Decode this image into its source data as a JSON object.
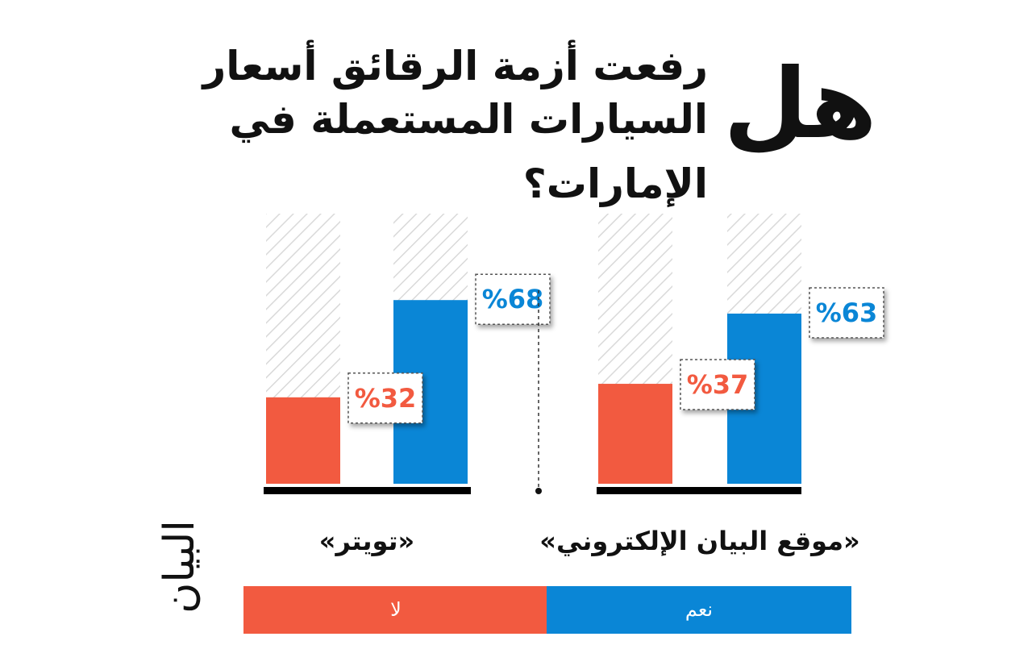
{
  "title": {
    "big": "هل",
    "line1": "رفعت أزمة الرقائق أسعار",
    "line2": "السيارات المستعملة في",
    "line3": "الإمارات؟"
  },
  "logo_text": "البيان",
  "colors": {
    "yes": "#0a86d6",
    "no": "#f25a40",
    "axis": "#000000",
    "hatch": "#d9d9d9",
    "label_box_border": "#555555"
  },
  "legend": {
    "yes": "نعم",
    "no": "لا"
  },
  "chart_data": {
    "type": "bar",
    "categories": [
      "«تويتر»",
      "«موقع البيان الإلكتروني»"
    ],
    "series": [
      {
        "name": "لا",
        "values": [
          32,
          37
        ]
      },
      {
        "name": "نعم",
        "values": [
          68,
          63
        ]
      }
    ],
    "value_labels": {
      "no": [
        "%32",
        "%37"
      ],
      "yes": [
        "%68",
        "%63"
      ]
    },
    "ylim": [
      0,
      100
    ],
    "grid": false,
    "legend_position": "bottom"
  }
}
